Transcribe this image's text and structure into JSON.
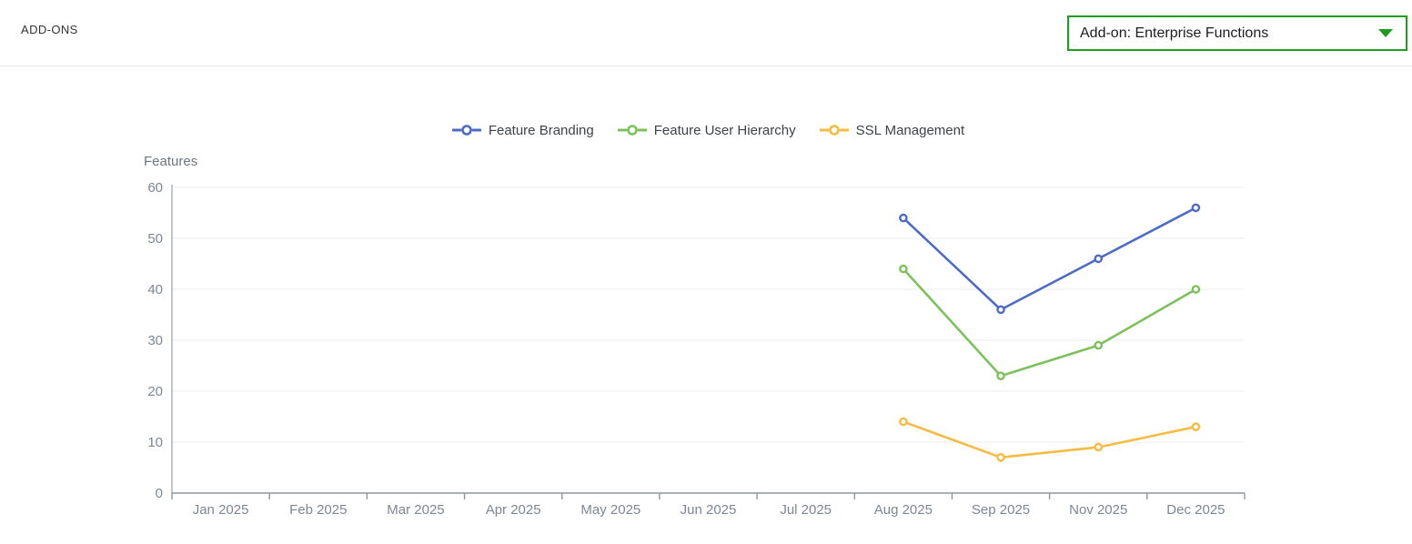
{
  "header": {
    "title": "ADD-ONS",
    "dropdown": {
      "value": "Add-on: Enterprise Functions",
      "accent_color": "#1d9e1d"
    }
  },
  "chart_data": {
    "type": "line",
    "title": "",
    "ylabel": "Features",
    "xlabel": "",
    "categories": [
      "Jan 2025",
      "Feb 2025",
      "Mar 2025",
      "Apr 2025",
      "May 2025",
      "Jun 2025",
      "Jul 2025",
      "Aug 2025",
      "Sep 2025",
      "Nov 2025",
      "Dec 2025"
    ],
    "series": [
      {
        "name": "Feature Branding",
        "color": "#4d6bc5",
        "values": [
          null,
          null,
          null,
          null,
          null,
          null,
          null,
          54,
          36,
          46,
          56
        ]
      },
      {
        "name": "Feature User Hierarchy",
        "color": "#7dc15c",
        "values": [
          null,
          null,
          null,
          null,
          null,
          null,
          null,
          44,
          23,
          29,
          40
        ]
      },
      {
        "name": "SSL Management",
        "color": "#f5bc42",
        "values": [
          null,
          null,
          null,
          null,
          null,
          null,
          null,
          14,
          7,
          9,
          13
        ]
      }
    ],
    "ylim": [
      0,
      60
    ],
    "ytick_step": 10,
    "grid": true,
    "legend_position": "top-center",
    "colors": {
      "gridline": "#ececec",
      "axis_line": "#9aa0a8",
      "tick_label": "#7d8695",
      "axis_title": "#6e7680"
    }
  }
}
